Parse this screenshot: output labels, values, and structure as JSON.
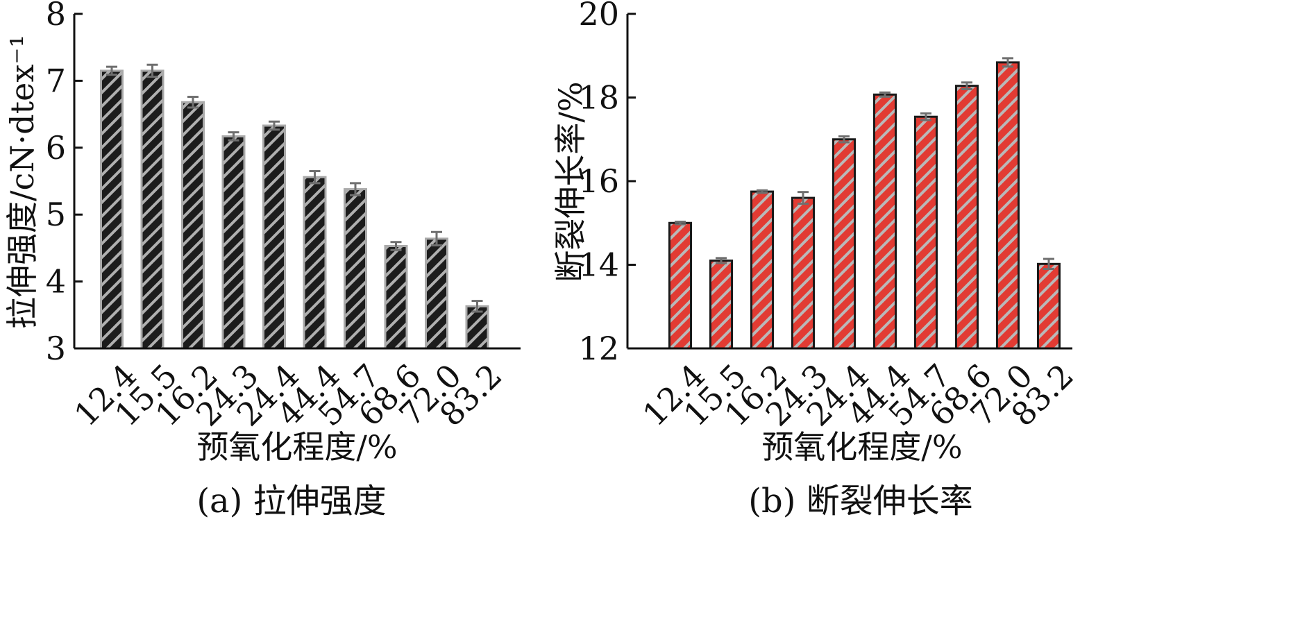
{
  "chart_data": [
    {
      "type": "bar",
      "categories": [
        "12.4",
        "15.5",
        "16.2",
        "24.3",
        "24.4",
        "44.4",
        "54.7",
        "68.6",
        "72.0",
        "83.2"
      ],
      "values": [
        7.15,
        7.15,
        6.68,
        6.17,
        6.33,
        5.56,
        5.38,
        4.53,
        4.64,
        3.63
      ],
      "errors": [
        0.06,
        0.09,
        0.08,
        0.06,
        0.06,
        0.09,
        0.09,
        0.06,
        0.1,
        0.08
      ],
      "xlabel": "预氧化程度/%",
      "ylabel": "拉伸强度/cN·dtex⁻¹",
      "caption": "(a) 拉伸强度",
      "ylim": [
        3,
        8
      ],
      "yticks": [
        3,
        4,
        5,
        6,
        7,
        8
      ],
      "bar_fill": "#1c1c1c",
      "hatch_color": "#b0b0b0",
      "bar_stroke": "#aaaaaa",
      "grid": false
    },
    {
      "type": "bar",
      "categories": [
        "12.4",
        "15.5",
        "16.2",
        "24.3",
        "24.4",
        "44.4",
        "54.7",
        "68.6",
        "72.0",
        "83.2"
      ],
      "values": [
        15.0,
        14.1,
        15.75,
        15.6,
        17.0,
        18.07,
        17.54,
        18.28,
        18.84,
        14.02
      ],
      "errors": [
        0.03,
        0.06,
        0.03,
        0.14,
        0.07,
        0.05,
        0.08,
        0.08,
        0.1,
        0.12
      ],
      "xlabel": "预氧化程度/%",
      "ylabel": "断裂伸长率/%",
      "caption": "(b) 断裂伸长率",
      "ylim": [
        12,
        20
      ],
      "yticks": [
        12,
        14,
        16,
        18,
        20
      ],
      "bar_fill": "#e23b33",
      "hatch_color": "#b9b9b9",
      "bar_stroke": "#1a1a1a",
      "grid": false
    }
  ]
}
